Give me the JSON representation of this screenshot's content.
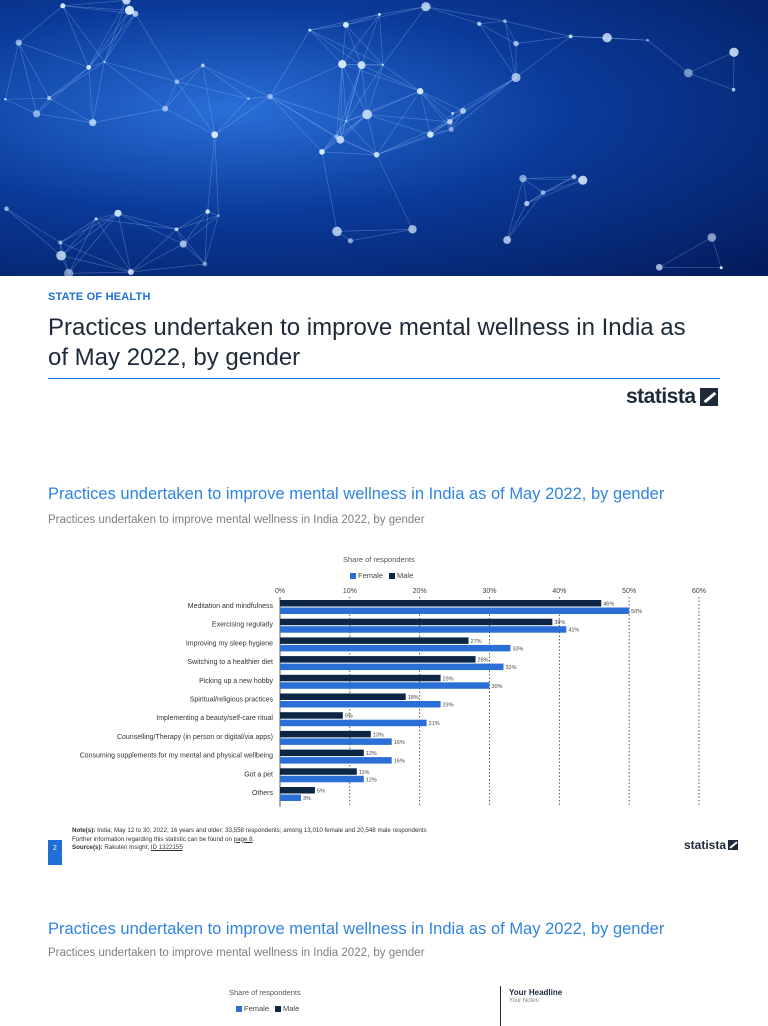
{
  "header": {
    "section_label": "STATE OF HEALTH",
    "title": "Practices undertaken to improve mental wellness in India as of May 2022, by gender",
    "brand": "statista"
  },
  "chart_data": {
    "type": "bar",
    "orientation": "horizontal",
    "title": "Practices undertaken to improve mental wellness in India as of May 2022, by gender",
    "subtitle": "Practices undertaken to improve mental wellness in India 2022, by gender",
    "xlabel": "Share of respondents",
    "xlim": [
      0,
      60
    ],
    "xticks": [
      "0%",
      "10%",
      "20%",
      "30%",
      "40%",
      "50%",
      "60%"
    ],
    "grid": true,
    "legend_position": "top",
    "categories": [
      "Meditation and mindfulness",
      "Exercising regularly",
      "Improving my sleep hygiene",
      "Switching to a healthier diet",
      "Picking up a new hobby",
      "Spiritual/religious practices",
      "Implementing a beauty/self-care ritual",
      "Counselling/Therapy (in person or digital/via apps)",
      "Consuming supplements for my mental and physical wellbeing",
      "Got a pet",
      "Others"
    ],
    "series": [
      {
        "name": "Male",
        "color": "#0d2645",
        "values": [
          46,
          39,
          27,
          28,
          23,
          18,
          9,
          13,
          12,
          11,
          5
        ]
      },
      {
        "name": "Female",
        "color": "#2b6fd6",
        "values": [
          50,
          41,
          33,
          32,
          30,
          23,
          21,
          16,
          16,
          12,
          3
        ]
      }
    ]
  },
  "footer": {
    "notes_label": "Note(s):",
    "notes_text": "India; May 12 to 30, 2022; 16 years and older; 33,558 respondents; among 13,010 female and 20,548 male respondents",
    "further_text": "Further information regarding this statistic can be found on ",
    "further_link": "page 8",
    "further_end": ".",
    "source_label": "Source(s):",
    "source_text": "Rakuten Insight; ",
    "source_id": "ID 1322155",
    "page_number": "2",
    "brand": "statista"
  },
  "second_chart": {
    "title": "Practices undertaken to improve mental wellness in India as of May 2022, by gender",
    "subtitle": "Practices undertaken to improve mental wellness in India 2022, by gender",
    "xlabel": "Share of respondents",
    "legend_female": "Female",
    "legend_male": "Male"
  },
  "notes_box": {
    "headline": "Your Headline",
    "notes": "Your Notes:"
  }
}
